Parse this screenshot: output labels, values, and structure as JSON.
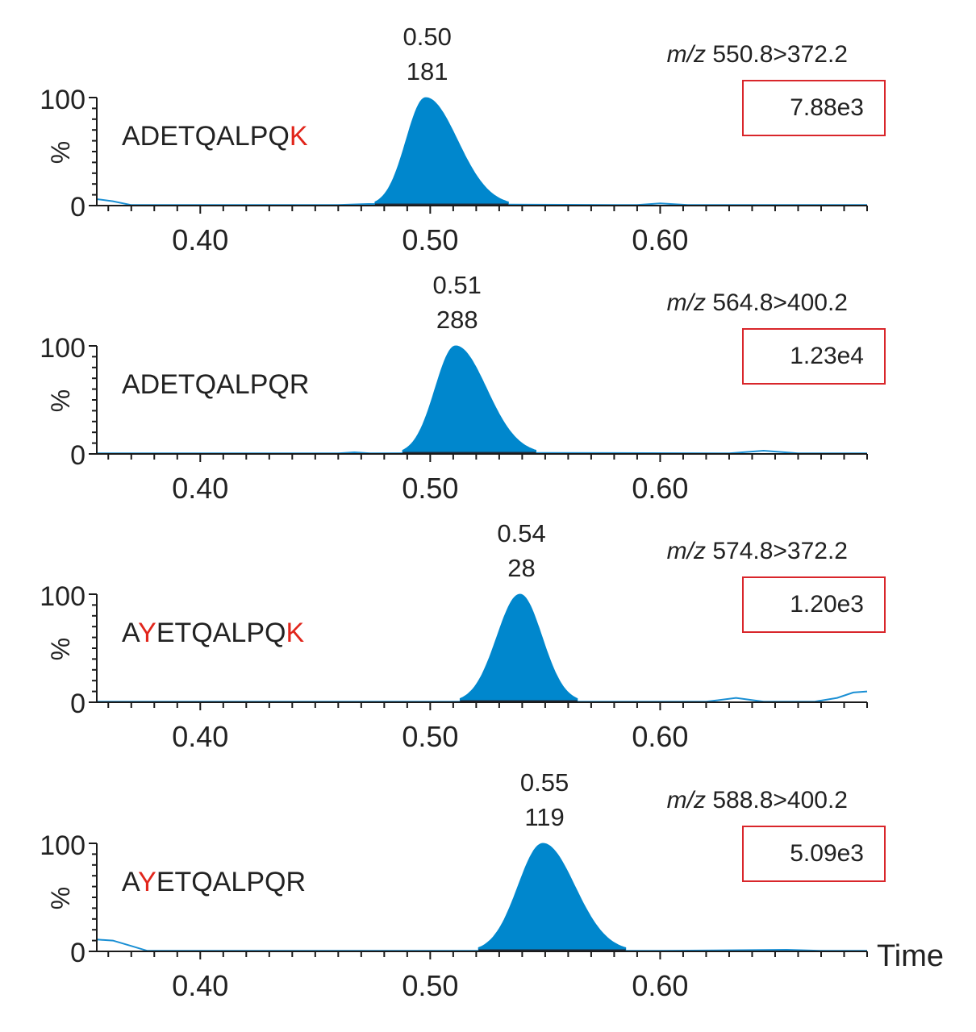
{
  "x_axis_label": "Time",
  "colors": {
    "peak_fill": "#0087cd",
    "baseline_line": "#1a8fd4",
    "axis": "#1a1a1a",
    "highlight_residue": "#e1251b",
    "intensity_box_border": "#d9262b",
    "text": "#222222"
  },
  "chart_data": [
    {
      "type": "area",
      "peptide": [
        {
          "text": "ADETQALPQ",
          "highlight": false
        },
        {
          "text": "K",
          "highlight": true
        }
      ],
      "transition_prefix": "m/z",
      "transition": "550.8>372.2",
      "peak_time": "0.50",
      "peak_area": "181",
      "max_intensity": "7.88e3",
      "ylabel": "%",
      "yticks": [
        "0",
        "100"
      ],
      "ylim": [
        0,
        100
      ],
      "xlim": [
        0.355,
        0.69
      ],
      "xticks": [
        "0.40",
        "0.50",
        "0.60"
      ],
      "peak": {
        "apex_time": 0.498,
        "height": 100,
        "start": 0.476,
        "end": 0.534
      },
      "baseline": [
        [
          0.355,
          6
        ],
        [
          0.362,
          4
        ],
        [
          0.37,
          0.5
        ],
        [
          0.46,
          0.5
        ],
        [
          0.473,
          1.5
        ],
        [
          0.59,
          0.5
        ],
        [
          0.6,
          2
        ],
        [
          0.612,
          0.5
        ],
        [
          0.69,
          0.5
        ]
      ]
    },
    {
      "type": "area",
      "peptide": [
        {
          "text": "ADETQALPQR",
          "highlight": false
        }
      ],
      "transition_prefix": "m/z",
      "transition": "564.8>400.2",
      "peak_time": "0.51",
      "peak_area": "288",
      "max_intensity": "1.23e4",
      "ylabel": "%",
      "yticks": [
        "0",
        "100"
      ],
      "ylim": [
        0,
        100
      ],
      "xlim": [
        0.355,
        0.69
      ],
      "xticks": [
        "0.40",
        "0.50",
        "0.60"
      ],
      "peak": {
        "apex_time": 0.511,
        "height": 100,
        "start": 0.488,
        "end": 0.546
      },
      "baseline": [
        [
          0.355,
          0.5
        ],
        [
          0.46,
          0.5
        ],
        [
          0.467,
          1.5
        ],
        [
          0.474,
          0.5
        ],
        [
          0.55,
          1
        ],
        [
          0.63,
          0.5
        ],
        [
          0.645,
          3
        ],
        [
          0.66,
          0.5
        ],
        [
          0.69,
          0.5
        ]
      ]
    },
    {
      "type": "area",
      "peptide": [
        {
          "text": "A",
          "highlight": false
        },
        {
          "text": "Y",
          "highlight": true
        },
        {
          "text": "ETQALPQ",
          "highlight": false
        },
        {
          "text": "K",
          "highlight": true
        }
      ],
      "transition_prefix": "m/z",
      "transition": "574.8>372.2",
      "peak_time": "0.54",
      "peak_area": "28",
      "max_intensity": "1.20e3",
      "ylabel": "%",
      "yticks": [
        "0",
        "100"
      ],
      "ylim": [
        0,
        100
      ],
      "xlim": [
        0.355,
        0.69
      ],
      "xticks": [
        "0.40",
        "0.50",
        "0.60"
      ],
      "peak": {
        "apex_time": 0.539,
        "height": 100,
        "start": 0.513,
        "end": 0.564
      },
      "baseline": [
        [
          0.355,
          0.5
        ],
        [
          0.62,
          0.5
        ],
        [
          0.633,
          4
        ],
        [
          0.645,
          0.5
        ],
        [
          0.667,
          0.5
        ],
        [
          0.677,
          4
        ],
        [
          0.684,
          9
        ],
        [
          0.69,
          10
        ]
      ]
    },
    {
      "type": "area",
      "peptide": [
        {
          "text": "A",
          "highlight": false
        },
        {
          "text": "Y",
          "highlight": true
        },
        {
          "text": "ETQALPQR",
          "highlight": false
        }
      ],
      "transition_prefix": "m/z",
      "transition": "588.8>400.2",
      "peak_time": "0.55",
      "peak_area": "119",
      "max_intensity": "5.09e3",
      "ylabel": "%",
      "yticks": [
        "0",
        "100"
      ],
      "ylim": [
        0,
        100
      ],
      "xlim": [
        0.355,
        0.69
      ],
      "xticks": [
        "0.40",
        "0.50",
        "0.60"
      ],
      "peak": {
        "apex_time": 0.549,
        "height": 100,
        "start": 0.521,
        "end": 0.585
      },
      "baseline": [
        [
          0.355,
          11
        ],
        [
          0.362,
          10
        ],
        [
          0.37,
          5
        ],
        [
          0.377,
          0.5
        ],
        [
          0.6,
          0.5
        ],
        [
          0.655,
          1.5
        ],
        [
          0.67,
          0.5
        ],
        [
          0.69,
          0.5
        ]
      ]
    }
  ]
}
